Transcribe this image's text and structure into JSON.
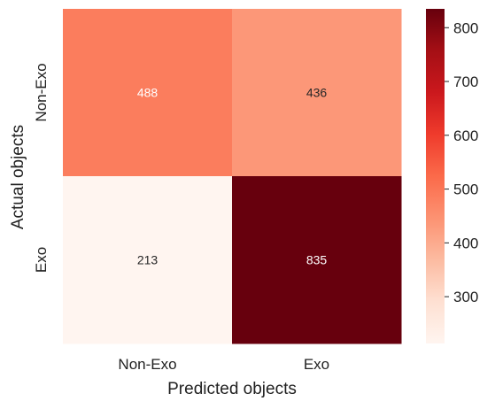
{
  "chart_data": {
    "type": "heatmap",
    "title": "",
    "xlabel": "Predicted objects",
    "ylabel": "Actual objects",
    "x_categories": [
      "Non-Exo",
      "Exo"
    ],
    "y_categories": [
      "Non-Exo",
      "Exo"
    ],
    "values": [
      [
        488,
        436
      ],
      [
        213,
        835
      ]
    ],
    "colormap": "Reds",
    "color_range": [
      213,
      835
    ],
    "colorbar_ticks": [
      300,
      400,
      500,
      600,
      700,
      800
    ],
    "colors": {
      "low": "#fff5f0",
      "high": "#67000d",
      "text_on_dark": "#ffffff",
      "text_on_light": "#262626"
    },
    "grid": false,
    "legend": "colorbar-right"
  }
}
